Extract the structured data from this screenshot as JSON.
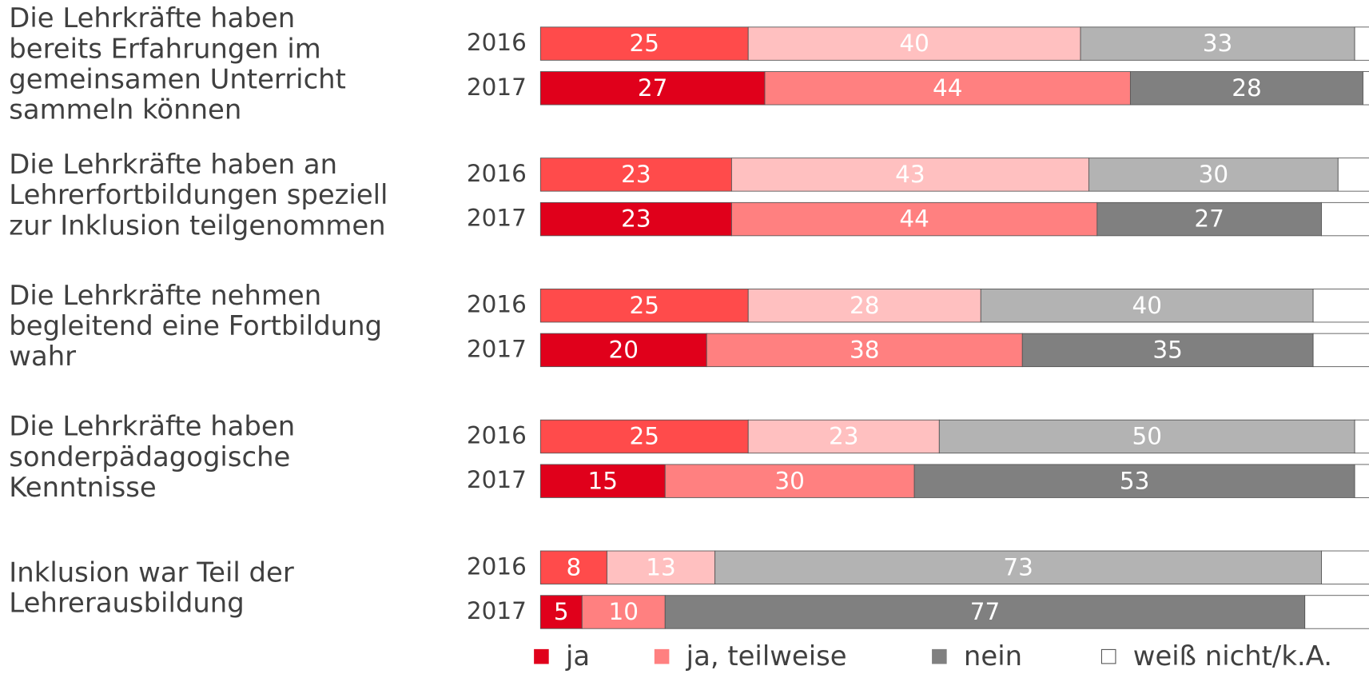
{
  "chart_data": {
    "type": "stacked-hbar",
    "xlim": [
      0,
      100
    ],
    "series": [
      {
        "name": "ja",
        "color": "#e0001b",
        "color_2016": "#ff4b4b"
      },
      {
        "name": "ja, teilweise",
        "color": "#ff8080",
        "color_2016": "#ffc0c0"
      },
      {
        "name": "nein",
        "color": "#808080",
        "color_2016": "#b3b3b3"
      },
      {
        "name": "weiß nicht/k.A.",
        "color": "#ffffff",
        "color_2016": "#ffffff"
      }
    ],
    "groups": [
      {
        "label": [
          "Die Lehrkräfte haben",
          "bereits Erfahrungen im",
          "gemeinsamen Unterricht",
          "sammeln können"
        ],
        "rows": [
          {
            "year": "2016",
            "values": [
              25,
              40,
              33,
              2
            ]
          },
          {
            "year": "2017",
            "values": [
              27,
              44,
              28,
              1
            ]
          }
        ]
      },
      {
        "label": [
          "Die Lehrkräfte haben an",
          "Lehrerfortbildungen speziell",
          "zur Inklusion teilgenommen"
        ],
        "rows": [
          {
            "year": "2016",
            "values": [
              23,
              43,
              30,
              4
            ]
          },
          {
            "year": "2017",
            "values": [
              23,
              44,
              27,
              6
            ]
          }
        ]
      },
      {
        "label": [
          "Die Lehrkräfte nehmen",
          "begleitend eine Fortbildung",
          "wahr"
        ],
        "rows": [
          {
            "year": "2016",
            "values": [
              25,
              28,
              40,
              7
            ]
          },
          {
            "year": "2017",
            "values": [
              20,
              38,
              35,
              7
            ]
          }
        ]
      },
      {
        "label": [
          "Die Lehrkräfte haben",
          "sonderpädagogische",
          "Kenntnisse"
        ],
        "rows": [
          {
            "year": "2016",
            "values": [
              25,
              23,
              50,
              2
            ]
          },
          {
            "year": "2017",
            "values": [
              15,
              30,
              53,
              2
            ]
          }
        ]
      },
      {
        "label": [
          "Inklusion war Teil der",
          "Lehrerausbildung"
        ],
        "rows": [
          {
            "year": "2016",
            "values": [
              8,
              13,
              73,
              6
            ]
          },
          {
            "year": "2017",
            "values": [
              5,
              10,
              77,
              8
            ]
          }
        ]
      }
    ]
  }
}
